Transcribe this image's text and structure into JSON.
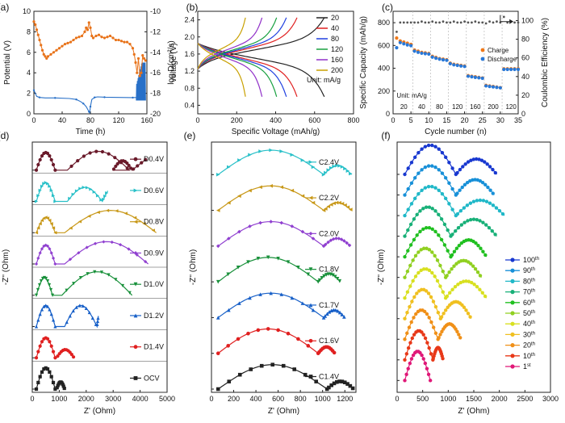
{
  "chart_data": [
    {
      "id": "a",
      "type": "line",
      "panel_label": "(a)",
      "xlabel": "Time (h)",
      "ylabel": "Potential (V)",
      "y2label": "log D(cm²/s)",
      "xlim": [
        0,
        160
      ],
      "ylim": [
        0,
        10
      ],
      "y2lim": [
        -20,
        -10
      ],
      "xticks": [
        "0",
        "40",
        "80",
        "120",
        "160"
      ],
      "yticks": [
        "0",
        "2",
        "4",
        "6",
        "8",
        "10"
      ],
      "y2ticks": [
        "-20",
        "-18",
        "-16",
        "-14",
        "-12",
        "-10"
      ],
      "series": [
        {
          "name": "log D",
          "axis": "right",
          "color": "#e8731a",
          "x": [
            0,
            2,
            4,
            6,
            8,
            10,
            12,
            14,
            16,
            18,
            20,
            24,
            28,
            32,
            36,
            40,
            44,
            48,
            52,
            56,
            60,
            64,
            68,
            72,
            74,
            76,
            78,
            80,
            82,
            84,
            88,
            92,
            96,
            100,
            104,
            108,
            112,
            116,
            120,
            124,
            128,
            132,
            136,
            140,
            142,
            144,
            146,
            148,
            150,
            152,
            154,
            156,
            158
          ],
          "y": [
            -11.0,
            -11.3,
            -11.8,
            -12.3,
            -12.8,
            -13.3,
            -13.8,
            -14.2,
            -14.4,
            -14.6,
            -14.4,
            -14.2,
            -14.0,
            -13.8,
            -13.6,
            -13.4,
            -13.2,
            -13.1,
            -13.0,
            -12.8,
            -12.6,
            -12.5,
            -12.4,
            -12.0,
            -11.6,
            -11.8,
            -11.1,
            -11.6,
            -12.4,
            -12.6,
            -12.4,
            -12.3,
            -12.5,
            -12.6,
            -12.5,
            -12.4,
            -12.6,
            -12.8,
            -12.8,
            -12.9,
            -13.0,
            -13.0,
            -13.2,
            -13.6,
            -14.2,
            -15.0,
            -16.0,
            -14.6,
            -16.3,
            -16.0,
            -14.3,
            -14.6,
            -14.8
          ]
        },
        {
          "name": "Potential",
          "axis": "left",
          "color": "#2870c8",
          "x": [
            0,
            4,
            8,
            16,
            30,
            50,
            60,
            66,
            70,
            74,
            78,
            79,
            80,
            82,
            86,
            90,
            100,
            120,
            140,
            145
          ],
          "y": [
            2.3,
            1.7,
            1.6,
            1.55,
            1.55,
            1.5,
            1.4,
            1.2,
            1.0,
            0.7,
            0.2,
            0.1,
            0.7,
            1.4,
            1.6,
            1.65,
            1.62,
            1.6,
            1.58,
            1.6
          ],
          "oscillation": {
            "x_start": 145,
            "x_end": 158,
            "y_low": 1.3,
            "y_high": 5.0
          }
        }
      ]
    },
    {
      "id": "b",
      "type": "line",
      "panel_label": "(b)",
      "xlabel": "Specific Voltage (mAh/g)",
      "ylabel": "voltage (V)",
      "xlim": [
        0,
        800
      ],
      "ylim": [
        0.2,
        2.6
      ],
      "xticks": [
        "0",
        "200",
        "400",
        "600",
        "800"
      ],
      "yticks": [
        "0.4",
        "0.8",
        "1.2",
        "1.6",
        "2.0",
        "2.4"
      ],
      "legend_title": "",
      "annotation": "Unit: mA/g",
      "series": [
        {
          "name": "20",
          "color": "#222222",
          "capacity": 650
        },
        {
          "name": "40",
          "color": "#e02020",
          "capacity": 510
        },
        {
          "name": "80",
          "color": "#2040e0",
          "capacity": 455
        },
        {
          "name": "120",
          "color": "#18a040",
          "capacity": 405
        },
        {
          "name": "160",
          "color": "#9030c8",
          "capacity": 330
        },
        {
          "name": "200",
          "color": "#c8a000",
          "capacity": 245
        }
      ]
    },
    {
      "id": "c",
      "type": "scatter",
      "panel_label": "(c)",
      "xlabel": "Cycle number (n)",
      "ylabel": "Specific Capacity (mAh/g)",
      "y2label": "Coulombic Efficiency (%)",
      "xlim": [
        0,
        35
      ],
      "ylim": [
        0,
        900
      ],
      "y2lim": [
        0,
        110
      ],
      "xticks": [
        "0",
        "5",
        "10",
        "15",
        "20",
        "25",
        "30",
        "35"
      ],
      "yticks": [
        "0",
        "200",
        "400",
        "600",
        "800"
      ],
      "y2ticks": [
        "0",
        "20",
        "40",
        "60",
        "80",
        "100"
      ],
      "annotation": "Unit: mA/g",
      "rate_labels": [
        "20",
        "40",
        "80",
        "120",
        "160",
        "200",
        "120"
      ],
      "series": [
        {
          "name": "Charge",
          "color": "#f07818",
          "x": [
            1,
            2,
            3,
            4,
            5,
            6,
            7,
            8,
            9,
            10,
            11,
            12,
            13,
            14,
            15,
            16,
            17,
            18,
            19,
            20,
            21,
            22,
            23,
            24,
            25,
            26,
            27,
            28,
            29,
            30,
            31,
            32,
            33,
            34,
            35
          ],
          "y": [
            665,
            640,
            630,
            620,
            610,
            560,
            550,
            540,
            535,
            530,
            505,
            495,
            485,
            480,
            475,
            445,
            435,
            430,
            425,
            420,
            335,
            330,
            325,
            320,
            315,
            250,
            245,
            240,
            235,
            230,
            395,
            395,
            395,
            395,
            395
          ]
        },
        {
          "name": "Discharge",
          "color": "#2878d8",
          "x": [
            1,
            2,
            3,
            4,
            5,
            6,
            7,
            8,
            9,
            10,
            11,
            12,
            13,
            14,
            15,
            16,
            17,
            18,
            19,
            20,
            21,
            22,
            23,
            24,
            25,
            26,
            27,
            28,
            29,
            30,
            31,
            32,
            33,
            34,
            35
          ],
          "y": [
            580,
            625,
            615,
            605,
            598,
            550,
            540,
            532,
            528,
            524,
            498,
            488,
            480,
            474,
            470,
            440,
            430,
            425,
            420,
            416,
            330,
            325,
            320,
            316,
            312,
            245,
            240,
            236,
            232,
            228,
            390,
            390,
            390,
            390,
            390
          ]
        },
        {
          "name": "Coulombic Efficiency",
          "color": "#555555",
          "axis": "right",
          "x": [
            1,
            2,
            3,
            4,
            5,
            6,
            7,
            8,
            9,
            10,
            11,
            12,
            13,
            14,
            15,
            16,
            17,
            18,
            19,
            20,
            21,
            22,
            23,
            24,
            25,
            26,
            27,
            28,
            29,
            30,
            31,
            32,
            33,
            34,
            35
          ],
          "y": [
            88,
            98,
            98,
            98,
            98,
            98,
            98,
            99,
            98,
            98,
            99,
            98,
            98,
            99,
            98,
            98,
            99,
            98,
            98,
            99,
            98,
            98,
            99,
            98,
            98,
            97,
            99,
            98,
            99,
            98,
            104,
            98,
            99,
            98,
            98
          ]
        }
      ]
    },
    {
      "id": "d",
      "type": "line",
      "panel_label": "(d)",
      "xlabel": "Z' (Ohm)",
      "ylabel": "-Z'' (Ohm)",
      "xlim": [
        0,
        5000
      ],
      "xticks": [
        "0",
        "1000",
        "2000",
        "3000",
        "4000",
        "5000"
      ],
      "series": [
        {
          "name": "D0.4V",
          "color": "#6a1a2a",
          "marker": "circle",
          "x_end": 4200,
          "arcs": [
            [
              150,
              700,
              0.75
            ],
            [
              1300,
              2300,
              0.8
            ],
            [
              3000,
              700,
              0.4
            ]
          ]
        },
        {
          "name": "D0.6V",
          "color": "#28c0c8",
          "marker": "triangle-right",
          "x_end": 2800,
          "arcs": [
            [
              150,
              700,
              0.8
            ],
            [
              1300,
              1300,
              0.6
            ]
          ]
        },
        {
          "name": "D0.8V",
          "color": "#c89818",
          "marker": "triangle-left",
          "x_end": 4600,
          "arcs": [
            [
              150,
              700,
              0.65
            ],
            [
              1200,
              3400,
              0.95
            ]
          ]
        },
        {
          "name": "D0.9V",
          "color": "#9040d0",
          "marker": "diamond",
          "x_end": 4300,
          "arcs": [
            [
              150,
              700,
              0.8
            ],
            [
              1200,
              3100,
              0.95
            ]
          ]
        },
        {
          "name": "D1.0V",
          "color": "#18903a",
          "marker": "triangle-down",
          "x_end": 3700,
          "arcs": [
            [
              150,
              600,
              0.75
            ],
            [
              1100,
              2600,
              1.0
            ]
          ]
        },
        {
          "name": "D1.2V",
          "color": "#1860c8",
          "marker": "triangle-up",
          "x_end": 2450,
          "arcs": [
            [
              150,
              700,
              0.9
            ],
            [
              1200,
              1200,
              0.9
            ]
          ]
        },
        {
          "name": "D1.4V",
          "color": "#e02020",
          "marker": "circle",
          "x_end": 1550,
          "arcs": [
            [
              150,
              700,
              0.85
            ],
            [
              900,
              650,
              0.35
            ]
          ]
        },
        {
          "name": "OCV",
          "color": "#222222",
          "marker": "square",
          "x_end": 1200,
          "arcs": [
            [
              150,
              700,
              0.9
            ],
            [
              900,
              300,
              0.3
            ]
          ]
        }
      ]
    },
    {
      "id": "e",
      "type": "line",
      "panel_label": "(e)",
      "xlabel": "Z' (Ohm)",
      "ylabel": "-Z'' (Ohm)",
      "xlim": [
        0,
        1300
      ],
      "xticks": [
        "0",
        "200",
        "400",
        "600",
        "800",
        "1000",
        "1200"
      ],
      "series": [
        {
          "name": "C2.4V",
          "color": "#28c0c8",
          "marker": "triangle-right",
          "x_end": 1260,
          "arcs": [
            [
              60,
              950,
              0.95
            ],
            [
              1010,
              250,
              0.35
            ]
          ]
        },
        {
          "name": "C2.2V",
          "color": "#c89818",
          "marker": "triangle-left",
          "x_end": 1260,
          "arcs": [
            [
              60,
              950,
              0.95
            ],
            [
              1010,
              250,
              0.3
            ]
          ]
        },
        {
          "name": "C2.0V",
          "color": "#9040d0",
          "marker": "diamond",
          "x_end": 1250,
          "arcs": [
            [
              60,
              950,
              0.95
            ],
            [
              1010,
              240,
              0.3
            ]
          ]
        },
        {
          "name": "C1.8V",
          "color": "#18903a",
          "marker": "triangle-down",
          "x_end": 1160,
          "arcs": [
            [
              60,
              900,
              0.95
            ],
            [
              960,
              200,
              0.3
            ]
          ]
        },
        {
          "name": "C1.7V",
          "color": "#1860c8",
          "marker": "triangle-up",
          "x_end": 1200,
          "arcs": [
            [
              60,
              950,
              0.95
            ],
            [
              1010,
              190,
              0.3
            ]
          ]
        },
        {
          "name": "C1.6V",
          "color": "#e02020",
          "marker": "circle",
          "x_end": 1110,
          "arcs": [
            [
              60,
              900,
              0.95
            ],
            [
              960,
              150,
              0.25
            ]
          ]
        },
        {
          "name": "C1.4V",
          "color": "#222222",
          "marker": "square",
          "x_end": 1280,
          "arcs": [
            [
              60,
              980,
              0.95
            ],
            [
              1040,
              240,
              0.3
            ]
          ]
        }
      ]
    },
    {
      "id": "f",
      "type": "line",
      "panel_label": "(f)",
      "xlabel": "Z' (Ohm)",
      "ylabel": "-Z'' (Ohm)",
      "xlim": [
        0,
        3000
      ],
      "xticks": [
        "0",
        "500",
        "1000",
        "1500",
        "2000",
        "2500",
        "3000"
      ],
      "series": [
        {
          "name": "100",
          "suffix": "th",
          "color": "#1838d0",
          "x_end": 1950,
          "arcs": [
            [
              150,
              1000,
              0.95
            ],
            [
              1150,
              800,
              0.5
            ]
          ]
        },
        {
          "name": "90",
          "suffix": "th",
          "color": "#1890d8",
          "x_end": 1900,
          "arcs": [
            [
              150,
              1000,
              0.95
            ],
            [
              1150,
              750,
              0.5
            ]
          ]
        },
        {
          "name": "80",
          "suffix": "th",
          "color": "#20b8c8",
          "x_end": 2100,
          "arcs": [
            [
              150,
              1000,
              0.95
            ],
            [
              1150,
              950,
              0.5
            ]
          ]
        },
        {
          "name": "70",
          "suffix": "th",
          "color": "#18b078",
          "x_end": 1950,
          "arcs": [
            [
              150,
              900,
              0.95
            ],
            [
              1050,
              900,
              0.55
            ]
          ]
        },
        {
          "name": "60",
          "suffix": "th",
          "color": "#20c020",
          "x_end": 1750,
          "arcs": [
            [
              150,
              900,
              0.95
            ],
            [
              1050,
              700,
              0.55
            ]
          ]
        },
        {
          "name": "50",
          "suffix": "th",
          "color": "#90d020",
          "x_end": 1650,
          "arcs": [
            [
              150,
              800,
              0.95
            ],
            [
              950,
              700,
              0.55
            ]
          ]
        },
        {
          "name": "40",
          "suffix": "th",
          "color": "#d8e020",
          "x_end": 1750,
          "arcs": [
            [
              150,
              800,
              0.95
            ],
            [
              950,
              800,
              0.55
            ]
          ]
        },
        {
          "name": "30",
          "suffix": "th",
          "color": "#f0c020",
          "x_end": 1450,
          "arcs": [
            [
              150,
              700,
              0.95
            ],
            [
              850,
              600,
              0.55
            ]
          ]
        },
        {
          "name": "20",
          "suffix": "th",
          "color": "#f09018",
          "x_end": 1250,
          "arcs": [
            [
              150,
              650,
              0.95
            ],
            [
              800,
              450,
              0.5
            ]
          ]
        },
        {
          "name": "10",
          "suffix": "th",
          "color": "#e83818",
          "x_end": 900,
          "arcs": [
            [
              150,
              550,
              0.95
            ],
            [
              700,
              200,
              0.4
            ]
          ]
        },
        {
          "name": "1",
          "suffix": "st",
          "color": "#e01878",
          "x_end": 650,
          "arcs": [
            [
              150,
              500,
              0.95
            ]
          ]
        }
      ]
    }
  ]
}
